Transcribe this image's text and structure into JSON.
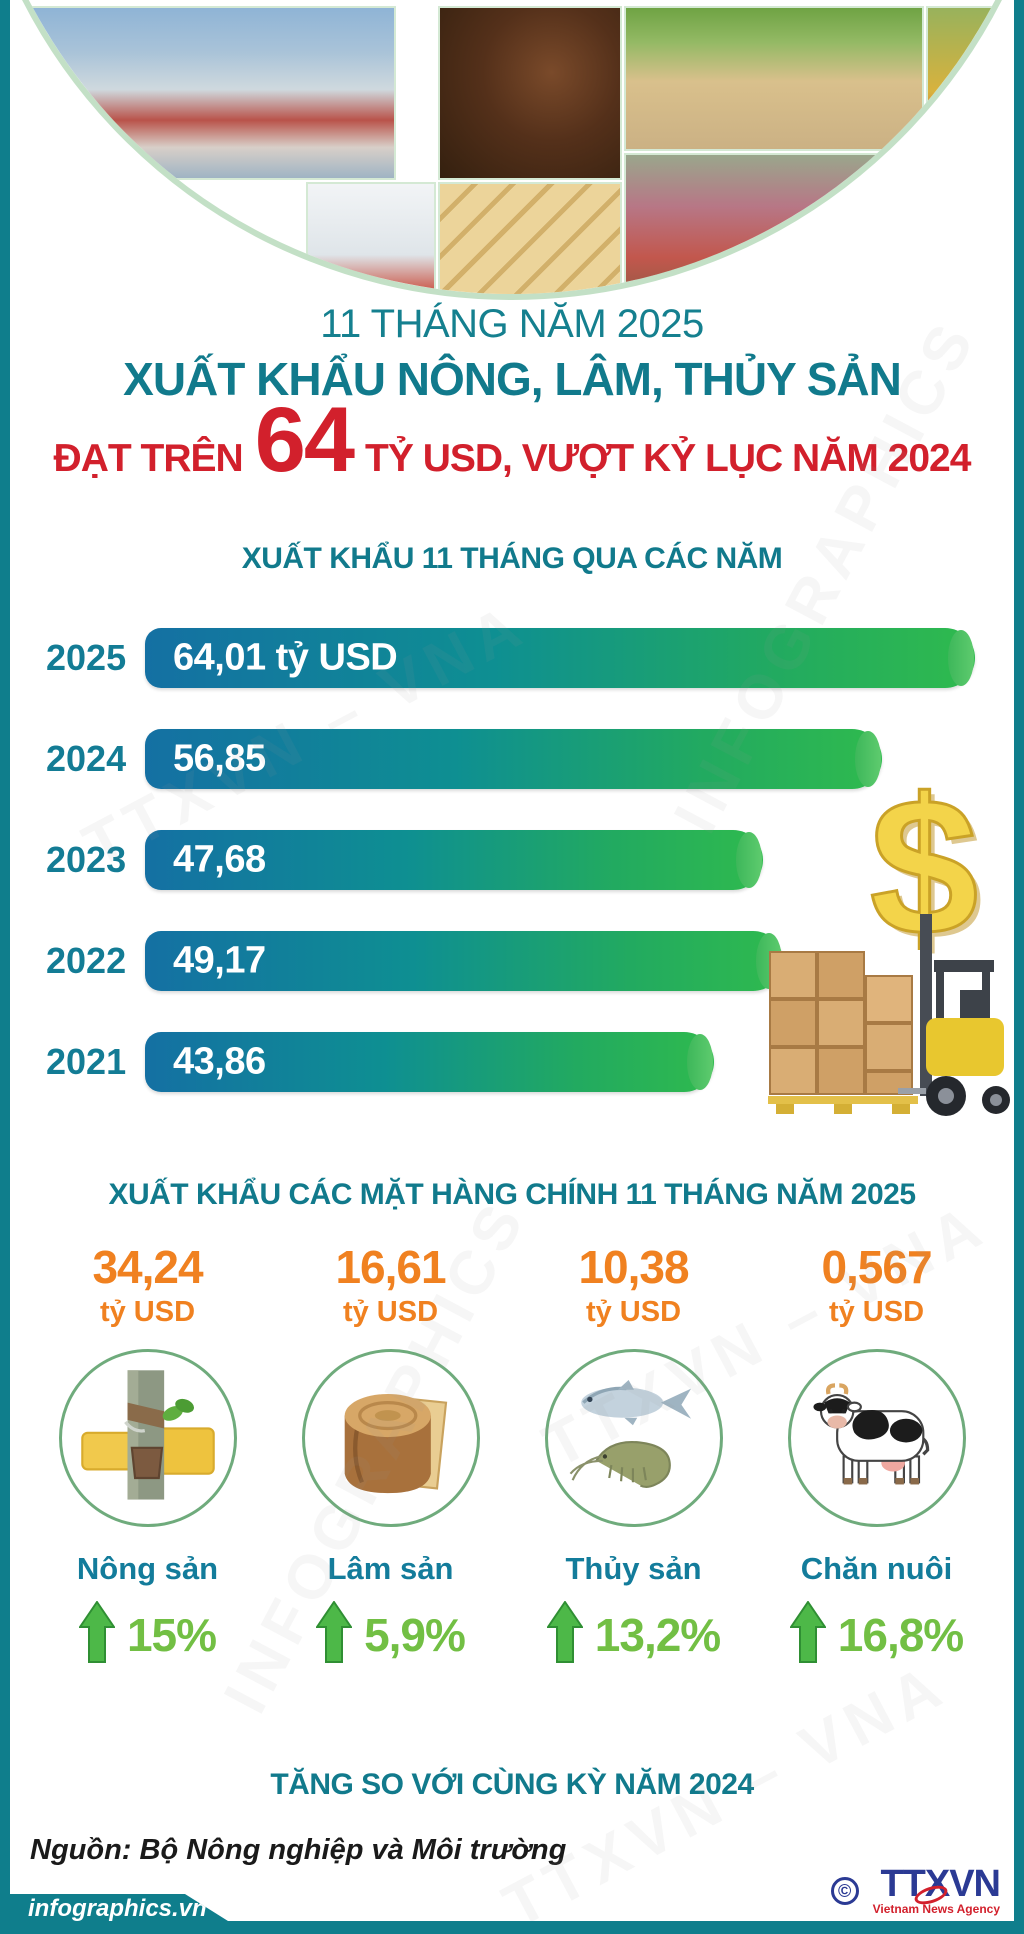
{
  "page": {
    "colors": {
      "teal": "#0f7e8c",
      "teal_text": "#117a8c",
      "red": "#d2202c",
      "orange": "#f08120",
      "green_pct": "#72bf44",
      "bar_gradient_start": "#1470a3",
      "bar_gradient_end": "#2fba4e",
      "gold_dollar": "#f3d44a"
    }
  },
  "header": {
    "kicker": "11 THÁNG NĂM 2025",
    "title": "XUẤT KHẨU NÔNG, LÂM, THỦY SẢN",
    "highlight_prefix": "ĐẠT TRÊN",
    "highlight_value": "64",
    "highlight_suffix": "TỶ USD, VƯỢT KỶ LỤC NĂM 2024"
  },
  "chart_data": {
    "type": "bar",
    "orientation": "horizontal",
    "title": "XUẤT KHẨU 11 THÁNG QUA CÁC NĂM",
    "categories": [
      "2025",
      "2024",
      "2023",
      "2022",
      "2021"
    ],
    "values": [
      64.01,
      56.85,
      47.68,
      49.17,
      43.86
    ],
    "value_labels": [
      "64,01 tỷ USD",
      "56,85",
      "47,68",
      "49,17",
      "43,86"
    ],
    "unit": "tỷ USD",
    "xlim": [
      0,
      64.01
    ],
    "grid": false,
    "legend": false
  },
  "products": {
    "title": "XUẤT KHẨU CÁC MẶT HÀNG CHÍNH 11 THÁNG NĂM 2025",
    "items": [
      {
        "value": "34,24",
        "unit": "tỷ USD",
        "label": "Nông sản",
        "change": "15%",
        "icon": "rubber-tapping-icon"
      },
      {
        "value": "16,61",
        "unit": "tỷ USD",
        "label": "Lâm sản",
        "change": "5,9%",
        "icon": "wood-stump-icon"
      },
      {
        "value": "10,38",
        "unit": "tỷ USD",
        "label": "Thủy sản",
        "change": "13,2%",
        "icon": "fish-shrimp-icon"
      },
      {
        "value": "0,567",
        "unit": "tỷ USD",
        "label": "Chăn nuôi",
        "change": "16,8%",
        "icon": "cow-icon"
      }
    ],
    "footnote": "TĂNG SO VỚI CÙNG KỲ NĂM 2024"
  },
  "source": "Nguồn: Bộ Nông nghiệp và Môi trường",
  "footer": {
    "site": "infographics.vn",
    "copyright": "©",
    "agency": "TTXVN",
    "agency_sub": "Vietnam News Agency"
  },
  "watermarks": [
    "TTXVN – VNA",
    "INFOGRAPHICS"
  ]
}
